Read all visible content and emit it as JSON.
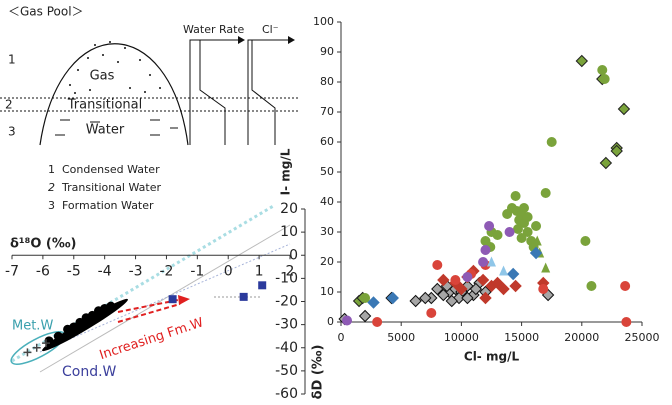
{
  "diagram": {
    "title": "＜Gas Pool＞",
    "zones": [
      "1",
      "2",
      "3"
    ],
    "zone_labels": [
      "Gas",
      "Transitional",
      "Water"
    ],
    "profiles": [
      "Water Rate",
      "Cl⁻"
    ],
    "legend": [
      {
        "number": "1",
        "label": "Condensed Water"
      },
      {
        "number": "2",
        "label": "Transitional Water"
      },
      {
        "number": "3",
        "label": "Formation Water"
      }
    ]
  },
  "chart_data": [
    {
      "type": "scatter",
      "x_label": "δ¹⁸O (‰)",
      "y_label": "δD (‰)",
      "xlim": [
        -7,
        2
      ],
      "xticks": [
        -7,
        -6,
        -5,
        -4,
        -3,
        -2,
        -1,
        0,
        1,
        2
      ],
      "ylim": [
        -60,
        20
      ],
      "yticks": [
        -60,
        -50,
        -40,
        -30,
        -20,
        -10,
        0,
        10,
        20
      ],
      "annotations": [
        "Met.W",
        "Cond.W",
        "Increasing Fm.W"
      ],
      "series": [
        {
          "color": "#000000",
          "marker": "circle",
          "x": [
            -5.8,
            -5.5,
            -5.2,
            -5.0,
            -4.8,
            -4.6,
            -4.4,
            -4.2,
            -4.0,
            -3.8
          ],
          "y": [
            -37,
            -35,
            -32,
            -31,
            -29,
            -27,
            -26,
            -24,
            -23,
            -22
          ]
        },
        {
          "color": "#2b3a9c",
          "marker": "square",
          "x": [
            -1.8,
            0.5,
            1.1
          ],
          "y": [
            -19,
            -18,
            -13
          ]
        },
        {
          "color": "#444444",
          "marker": "plus",
          "x": [
            -6.5,
            -6.2,
            -5.9
          ],
          "y": [
            -42,
            -40,
            -38
          ]
        }
      ]
    },
    {
      "type": "scatter",
      "x_label": "Cl- mg/L",
      "y_label": "I- mg/L",
      "xlim": [
        0,
        25000
      ],
      "xticks": [
        0,
        5000,
        10000,
        15000,
        20000,
        25000
      ],
      "ylim": [
        0,
        100
      ],
      "yticks": [
        0,
        10,
        20,
        30,
        40,
        50,
        60,
        70,
        80,
        90,
        100
      ],
      "series": [
        {
          "color": "#7aa33b",
          "edge": "#222222",
          "marker": "diamond",
          "x": [
            20000,
            21700,
            22900,
            22900,
            23500,
            1500,
            1800,
            22000
          ],
          "y": [
            87,
            81,
            58,
            57,
            71,
            7,
            8,
            53
          ]
        },
        {
          "color": "#7aa33b",
          "marker": "circle",
          "x": [
            21700,
            21900,
            17500,
            17000,
            20300,
            20800,
            14500,
            14200,
            14600,
            15000,
            14800,
            15200,
            15500,
            15000,
            15800,
            16000,
            14700,
            13800,
            15200,
            15500,
            16200,
            12500,
            12400,
            12000,
            2000,
            13000
          ],
          "y": [
            84,
            81,
            60,
            43,
            27,
            12,
            42,
            38,
            37,
            36,
            34,
            33,
            30,
            28,
            27,
            25,
            31,
            36,
            38,
            35,
            32,
            30,
            25,
            27,
            8,
            29
          ]
        },
        {
          "color": "#7aa33b",
          "marker": "triangle",
          "x": [
            16300,
            17000,
            16500
          ],
          "y": [
            27,
            18,
            23
          ]
        },
        {
          "color": "#a6a6a6",
          "edge": "#111111",
          "marker": "diamond",
          "x": [
            9000,
            9500,
            10000,
            8500,
            7500,
            7000,
            8000,
            9800,
            11000,
            10500,
            11500,
            12000,
            9200,
            8800,
            17200,
            4200,
            6200,
            2000,
            300,
            10500,
            11200
          ],
          "y": [
            10,
            11,
            10,
            9,
            8,
            8,
            11,
            8,
            9,
            12,
            13,
            10,
            7,
            12,
            9,
            8,
            7,
            2,
            1,
            8,
            11
          ]
        },
        {
          "color": "#c0392b",
          "marker": "diamond",
          "x": [
            10500,
            11000,
            11800,
            12500,
            13500,
            14500,
            10000,
            12000,
            16800,
            9500,
            8500,
            13000
          ],
          "y": [
            15,
            17,
            14,
            12,
            11,
            12,
            11,
            8,
            13,
            13,
            14,
            13
          ]
        },
        {
          "color": "#d9443a",
          "marker": "circle",
          "x": [
            8000,
            7500,
            3000,
            23700,
            23600,
            10800,
            9500,
            12000,
            16800
          ],
          "y": [
            19,
            3,
            0,
            0,
            12,
            16,
            14,
            19,
            11
          ]
        },
        {
          "color": "#3a78b5",
          "marker": "diamond",
          "x": [
            2700,
            4300,
            16200,
            14300
          ],
          "y": [
            6.5,
            8,
            23,
            16
          ]
        },
        {
          "color": "#8e5ab5",
          "marker": "circle",
          "x": [
            12000,
            12300,
            11800,
            10500,
            14000,
            500
          ],
          "y": [
            24,
            32,
            20,
            15,
            30,
            0.5
          ]
        },
        {
          "color": "#8fc6e8",
          "marker": "triangle",
          "x": [
            13500,
            12500
          ],
          "y": [
            17,
            20
          ]
        }
      ]
    }
  ]
}
